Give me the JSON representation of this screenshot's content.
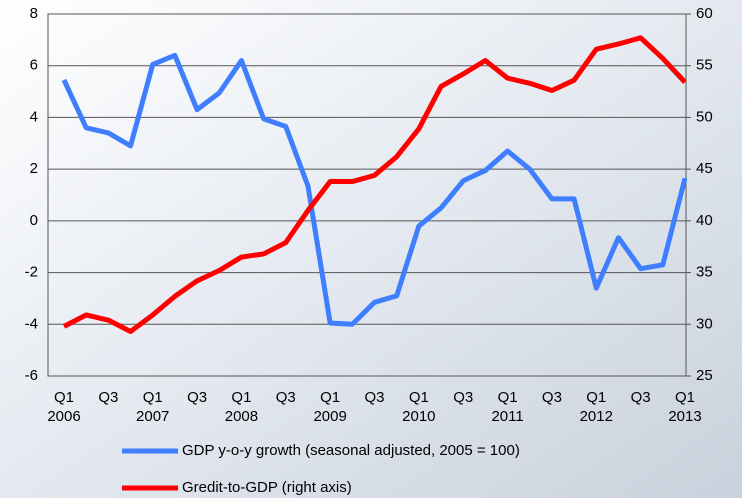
{
  "chart_data": {
    "type": "line",
    "categories": [
      "Q1 2006",
      null,
      "Q3",
      null,
      "Q1 2007",
      null,
      "Q3",
      null,
      "Q1 2008",
      null,
      "Q3",
      null,
      "Q1 2009",
      null,
      "Q3",
      null,
      "Q1 2010",
      null,
      "Q3",
      null,
      "Q1 2011",
      null,
      "Q3",
      null,
      "Q1 2012",
      null,
      "Q3",
      null,
      "Q1 2013"
    ],
    "series": [
      {
        "name": "GDP y-o-y growth (seasonal adjusted, 2005 = 100)",
        "color": "#3f7fff",
        "values": [
          5.45,
          3.6,
          3.4,
          2.9,
          6.05,
          6.4,
          4.3,
          4.95,
          6.2,
          3.95,
          3.65,
          1.35,
          -3.95,
          -4.0,
          -3.15,
          -2.9,
          -0.2,
          0.5,
          1.55,
          1.95,
          2.7,
          2.0,
          0.85,
          0.85,
          -2.6,
          -0.65,
          -1.85,
          -1.7,
          1.65
        ]
      },
      {
        "name": "Gredit-to-GDP (right axis)",
        "color": "#ff0000",
        "axis": "y2",
        "values": [
          29.8,
          30.9,
          30.4,
          29.3,
          30.9,
          32.7,
          34.2,
          35.2,
          36.5,
          36.8,
          37.9,
          41.0,
          43.8,
          43.8,
          44.4,
          46.2,
          48.9,
          53.0,
          54.2,
          55.5,
          53.8,
          53.3,
          52.6,
          53.6,
          56.6,
          57.1,
          57.7,
          55.7,
          53.4
        ]
      }
    ],
    "ylim": [
      -6,
      8
    ],
    "yticks": [
      -6,
      -4,
      -2,
      0,
      2,
      4,
      6,
      8
    ],
    "y2lim": [
      25,
      60
    ],
    "y2ticks": [
      25,
      30,
      35,
      40,
      45,
      50,
      55,
      60
    ],
    "grid": true
  }
}
